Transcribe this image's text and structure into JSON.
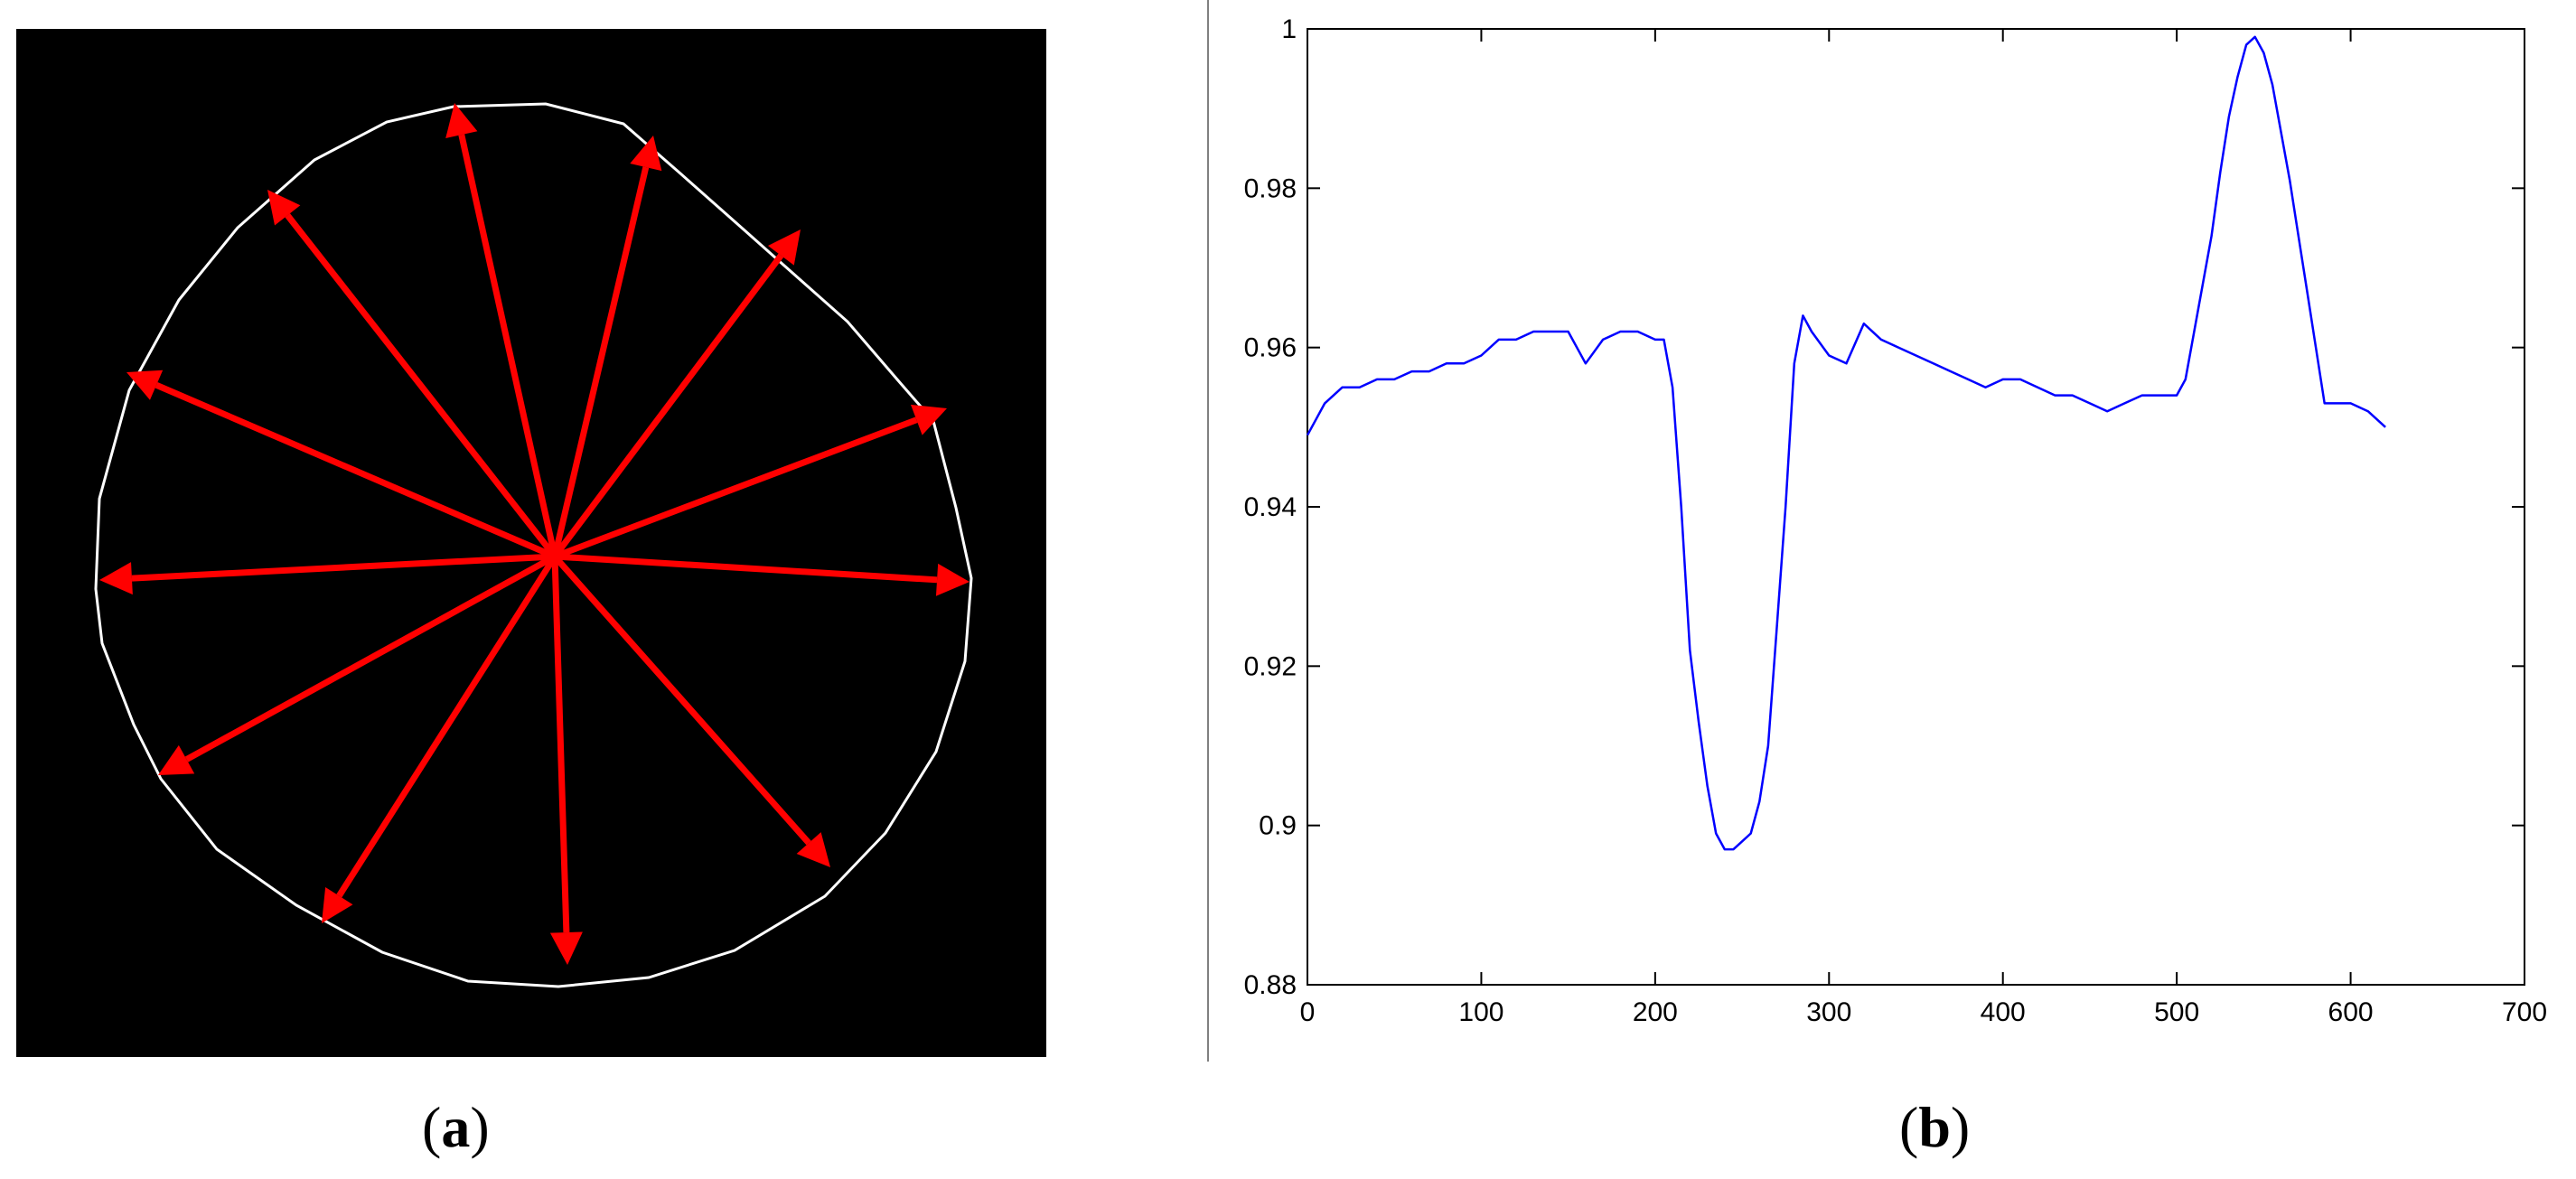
{
  "panel_a": {
    "caption_open": "(",
    "caption_letter": "a",
    "caption_close": ")",
    "background_color": "#000000",
    "contour_color": "#ffffff",
    "arrow_color": "#ff0000",
    "arrow_count": 12
  },
  "panel_b": {
    "caption_open": "(",
    "caption_letter": "b",
    "caption_close": ")"
  },
  "chart_data": {
    "type": "line",
    "title": "",
    "xlabel": "",
    "ylabel": "",
    "xlim": [
      0,
      700
    ],
    "ylim": [
      0.88,
      1.0
    ],
    "xticks": [
      "0",
      "100",
      "200",
      "300",
      "400",
      "500",
      "600",
      "700"
    ],
    "yticks": [
      "0.88",
      "0.9",
      "0.92",
      "0.94",
      "0.96",
      "0.98",
      "1"
    ],
    "grid": false,
    "line_color": "#0000ff",
    "series": [
      {
        "x": [
          0,
          10,
          20,
          30,
          40,
          50,
          60,
          70,
          80,
          90,
          100,
          110,
          120,
          130,
          140,
          150,
          160,
          170,
          180,
          190,
          200,
          205,
          210,
          215,
          220,
          225,
          230,
          235,
          240,
          245,
          250,
          255,
          260,
          265,
          270,
          275,
          280,
          285,
          290,
          300,
          310,
          320,
          330,
          340,
          350,
          360,
          370,
          380,
          390,
          400,
          410,
          420,
          430,
          440,
          450,
          460,
          470,
          480,
          490,
          500,
          505,
          510,
          515,
          520,
          525,
          530,
          535,
          540,
          545,
          550,
          555,
          560,
          565,
          570,
          575,
          580,
          585,
          590,
          600,
          610,
          620
        ],
        "y": [
          0.949,
          0.953,
          0.955,
          0.955,
          0.956,
          0.956,
          0.957,
          0.957,
          0.958,
          0.958,
          0.959,
          0.961,
          0.961,
          0.962,
          0.962,
          0.962,
          0.958,
          0.961,
          0.962,
          0.962,
          0.961,
          0.961,
          0.955,
          0.94,
          0.922,
          0.913,
          0.905,
          0.899,
          0.897,
          0.897,
          0.898,
          0.899,
          0.903,
          0.91,
          0.925,
          0.94,
          0.958,
          0.964,
          0.962,
          0.959,
          0.958,
          0.963,
          0.961,
          0.96,
          0.959,
          0.958,
          0.957,
          0.956,
          0.955,
          0.956,
          0.956,
          0.955,
          0.954,
          0.954,
          0.953,
          0.952,
          0.953,
          0.954,
          0.954,
          0.954,
          0.956,
          0.962,
          0.968,
          0.974,
          0.982,
          0.989,
          0.994,
          0.998,
          0.999,
          0.997,
          0.993,
          0.987,
          0.981,
          0.974,
          0.967,
          0.96,
          0.953,
          0.953,
          0.953,
          0.952,
          0.95
        ]
      }
    ]
  }
}
